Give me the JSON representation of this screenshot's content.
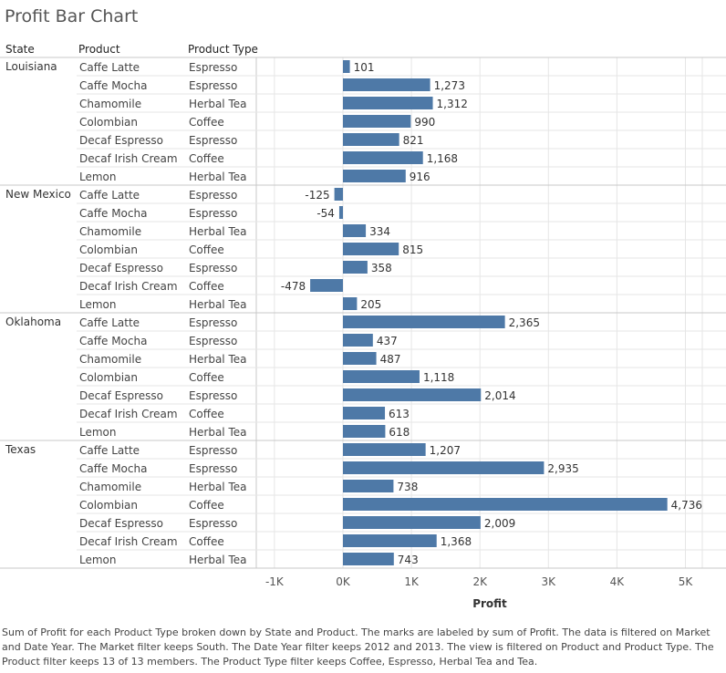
{
  "title": "Profit Bar Chart",
  "headers": {
    "state": "State",
    "product": "Product",
    "product_type": "Product Type"
  },
  "caption": "Sum of Profit for each Product Type broken down by State and Product.  The marks are labeled by sum of Profit. The data is filtered on Market and Date Year. The Market filter keeps South. The Date Year filter keeps 2012 and 2013. The view is filtered on Product and Product Type. The Product filter keeps 13 of 13 members. The Product Type filter keeps Coffee, Espresso, Herbal Tea and Tea.",
  "colors": {
    "bar": "#4e79a7",
    "grid": "#e6e6e6",
    "divider": "#c8c8c8"
  },
  "chart_data": {
    "type": "bar",
    "orientation": "horizontal",
    "title": "Profit Bar Chart",
    "xlabel": "Profit",
    "xlim": [
      -1000,
      5000
    ],
    "xticks": [
      -1000,
      0,
      1000,
      2000,
      3000,
      4000,
      5000
    ],
    "xtick_labels": [
      "-1K",
      "0K",
      "1K",
      "2K",
      "3K",
      "4K",
      "5K"
    ],
    "groups": [
      {
        "state": "Louisiana",
        "rows": [
          {
            "product": "Caffe Latte",
            "type": "Espresso",
            "value": 101,
            "label": "101"
          },
          {
            "product": "Caffe Mocha",
            "type": "Espresso",
            "value": 1273,
            "label": "1,273"
          },
          {
            "product": "Chamomile",
            "type": "Herbal Tea",
            "value": 1312,
            "label": "1,312"
          },
          {
            "product": "Colombian",
            "type": "Coffee",
            "value": 990,
            "label": "990"
          },
          {
            "product": "Decaf Espresso",
            "type": "Espresso",
            "value": 821,
            "label": "821"
          },
          {
            "product": "Decaf Irish Cream",
            "type": "Coffee",
            "value": 1168,
            "label": "1,168"
          },
          {
            "product": "Lemon",
            "type": "Herbal Tea",
            "value": 916,
            "label": "916"
          }
        ]
      },
      {
        "state": "New Mexico",
        "rows": [
          {
            "product": "Caffe Latte",
            "type": "Espresso",
            "value": -125,
            "label": "-125"
          },
          {
            "product": "Caffe Mocha",
            "type": "Espresso",
            "value": -54,
            "label": "-54"
          },
          {
            "product": "Chamomile",
            "type": "Herbal Tea",
            "value": 334,
            "label": "334"
          },
          {
            "product": "Colombian",
            "type": "Coffee",
            "value": 815,
            "label": "815"
          },
          {
            "product": "Decaf Espresso",
            "type": "Espresso",
            "value": 358,
            "label": "358"
          },
          {
            "product": "Decaf Irish Cream",
            "type": "Coffee",
            "value": -478,
            "label": "-478"
          },
          {
            "product": "Lemon",
            "type": "Herbal Tea",
            "value": 205,
            "label": "205"
          }
        ]
      },
      {
        "state": "Oklahoma",
        "rows": [
          {
            "product": "Caffe Latte",
            "type": "Espresso",
            "value": 2365,
            "label": "2,365"
          },
          {
            "product": "Caffe Mocha",
            "type": "Espresso",
            "value": 437,
            "label": "437"
          },
          {
            "product": "Chamomile",
            "type": "Herbal Tea",
            "value": 487,
            "label": "487"
          },
          {
            "product": "Colombian",
            "type": "Coffee",
            "value": 1118,
            "label": "1,118"
          },
          {
            "product": "Decaf Espresso",
            "type": "Espresso",
            "value": 2014,
            "label": "2,014"
          },
          {
            "product": "Decaf Irish Cream",
            "type": "Coffee",
            "value": 613,
            "label": "613"
          },
          {
            "product": "Lemon",
            "type": "Herbal Tea",
            "value": 618,
            "label": "618"
          }
        ]
      },
      {
        "state": "Texas",
        "rows": [
          {
            "product": "Caffe Latte",
            "type": "Espresso",
            "value": 1207,
            "label": "1,207"
          },
          {
            "product": "Caffe Mocha",
            "type": "Espresso",
            "value": 2935,
            "label": "2,935"
          },
          {
            "product": "Chamomile",
            "type": "Herbal Tea",
            "value": 738,
            "label": "738"
          },
          {
            "product": "Colombian",
            "type": "Coffee",
            "value": 4736,
            "label": "4,736"
          },
          {
            "product": "Decaf Espresso",
            "type": "Espresso",
            "value": 2009,
            "label": "2,009"
          },
          {
            "product": "Decaf Irish Cream",
            "type": "Coffee",
            "value": 1368,
            "label": "1,368"
          },
          {
            "product": "Lemon",
            "type": "Herbal Tea",
            "value": 743,
            "label": "743"
          }
        ]
      }
    ]
  }
}
